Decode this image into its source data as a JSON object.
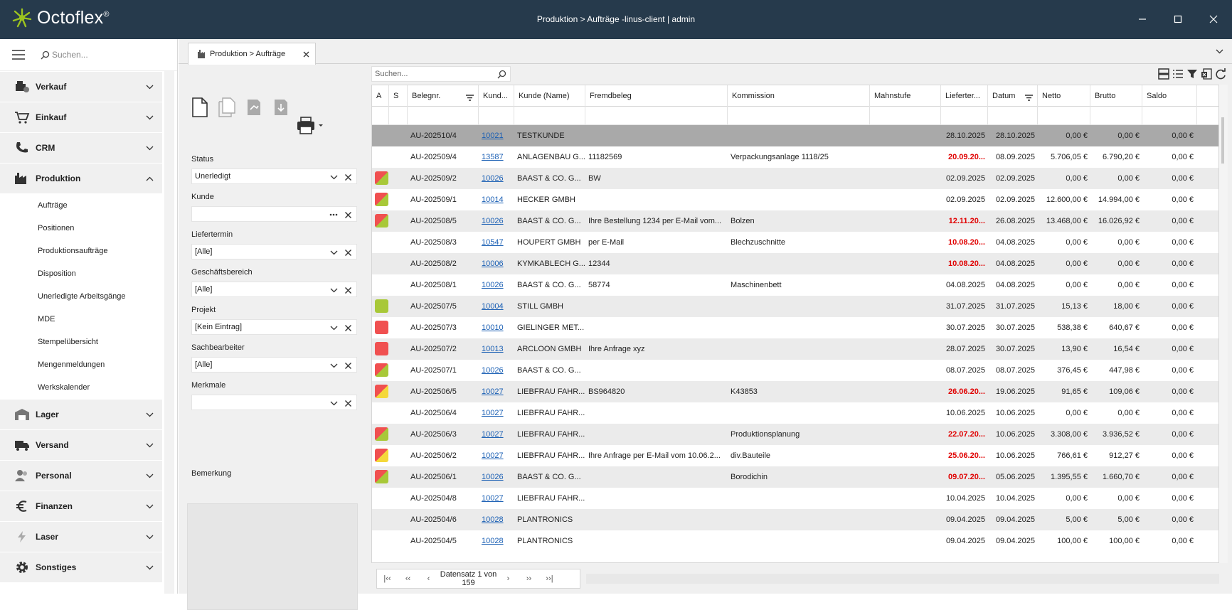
{
  "app": {
    "name": "Octoflex",
    "reg": "®",
    "window_title": "Produktion > Aufträge -linus-client | admin"
  },
  "sidebar": {
    "search_placeholder": "Suchen...",
    "groups_top": [
      {
        "label": "Verkauf",
        "icon": "register-icon"
      },
      {
        "label": "Einkauf",
        "icon": "cart-icon"
      },
      {
        "label": "CRM",
        "icon": "phone-icon"
      },
      {
        "label": "Produktion",
        "icon": "factory-icon",
        "expanded": true
      }
    ],
    "subitems": [
      "Aufträge",
      "Positionen",
      "Produktionsaufträge",
      "Disposition",
      "Unerledigte Arbeitsgänge",
      "MDE",
      "Stempelübersicht",
      "Mengenmeldungen",
      "Werkskalender"
    ],
    "groups_bottom": [
      {
        "label": "Lager",
        "icon": "warehouse-icon"
      },
      {
        "label": "Versand",
        "icon": "truck-icon"
      },
      {
        "label": "Personal",
        "icon": "people-icon"
      },
      {
        "label": "Finanzen",
        "icon": "euro-icon"
      },
      {
        "label": "Laser",
        "icon": "lightning-icon"
      },
      {
        "label": "Sonstiges",
        "icon": "gear-icon"
      }
    ]
  },
  "tab": {
    "label": "Produktion > Aufträge"
  },
  "filters": [
    {
      "label": "Status",
      "value": "Unerledigt",
      "type": "select"
    },
    {
      "label": "Kunde",
      "value": "",
      "type": "lookup"
    },
    {
      "label": "Liefertermin",
      "value": "[Alle]",
      "type": "select"
    },
    {
      "label": "Geschäftsbereich",
      "value": "[Alle]",
      "type": "select"
    },
    {
      "label": "Projekt",
      "value": "[Kein Eintrag]",
      "type": "select"
    },
    {
      "label": "Sachbearbeiter",
      "value": "[Alle]",
      "type": "select"
    },
    {
      "label": "Merkmale",
      "value": "",
      "type": "select"
    }
  ],
  "remark_label": "Bemerkung",
  "grid": {
    "search_placeholder": "Suchen...",
    "columns": [
      "A",
      "S",
      "Belegnr.",
      "Kund...",
      "Kunde (Name)",
      "Fremdbeleg",
      "Kommission",
      "Mahnstufe",
      "Lieferter...",
      "Datum",
      "Netto",
      "Brutto",
      "Saldo"
    ],
    "rows": [
      {
        "flag": "",
        "belegnr": "AU-202510/4",
        "kund": "10021",
        "name": "TESTKUNDE",
        "fremd": "",
        "komm": "",
        "mahn": "",
        "liefer": "28.10.2025",
        "liefer_red": false,
        "datum": "28.10.2025",
        "netto": "0,00 €",
        "brutto": "0,00 €",
        "saldo": "0,00 €",
        "selected": true
      },
      {
        "flag": "",
        "belegnr": "AU-202509/4",
        "kund": "13587",
        "name": "ANLAGENBAU G...",
        "fremd": "11182569",
        "komm": "Verpackungsanlage 1118/25",
        "mahn": "",
        "liefer": "20.09.20...",
        "liefer_red": true,
        "datum": "08.09.2025",
        "netto": "5.706,05 €",
        "brutto": "6.790,20 €",
        "saldo": "0,00 €"
      },
      {
        "flag": "rg",
        "belegnr": "AU-202509/2",
        "kund": "10026",
        "name": "BAAST & CO. G...",
        "fremd": "BW",
        "komm": "",
        "mahn": "",
        "liefer": "02.09.2025",
        "liefer_red": false,
        "datum": "02.09.2025",
        "netto": "0,00 €",
        "brutto": "0,00 €",
        "saldo": "0,00 €"
      },
      {
        "flag": "rg",
        "belegnr": "AU-202509/1",
        "kund": "10014",
        "name": "HECKER GMBH",
        "fremd": "",
        "komm": "",
        "mahn": "",
        "liefer": "02.09.2025",
        "liefer_red": false,
        "datum": "02.09.2025",
        "netto": "12.600,00 €",
        "brutto": "14.994,00 €",
        "saldo": "0,00 €"
      },
      {
        "flag": "rg",
        "belegnr": "AU-202508/5",
        "kund": "10026",
        "name": "BAAST & CO. G...",
        "fremd": "Ihre Bestellung 1234 per E-Mail vom...",
        "komm": "Bolzen",
        "mahn": "",
        "liefer": "12.11.20...",
        "liefer_red": true,
        "datum": "26.08.2025",
        "netto": "13.468,00 €",
        "brutto": "16.026,92 €",
        "saldo": "0,00 €"
      },
      {
        "flag": "",
        "belegnr": "AU-202508/3",
        "kund": "10547",
        "name": "HOUPERT GMBH",
        "fremd": "per E-Mail",
        "komm": "Blechzuschnitte",
        "mahn": "",
        "liefer": "10.08.20...",
        "liefer_red": true,
        "datum": "04.08.2025",
        "netto": "0,00 €",
        "brutto": "0,00 €",
        "saldo": "0,00 €"
      },
      {
        "flag": "",
        "belegnr": "AU-202508/2",
        "kund": "10006",
        "name": "KYMKABLECH G...",
        "fremd": "12344",
        "komm": "",
        "mahn": "",
        "liefer": "10.08.20...",
        "liefer_red": true,
        "datum": "04.08.2025",
        "netto": "0,00 €",
        "brutto": "0,00 €",
        "saldo": "0,00 €"
      },
      {
        "flag": "",
        "belegnr": "AU-202508/1",
        "kund": "10026",
        "name": "BAAST & CO. G...",
        "fremd": "58774",
        "komm": "Maschinenbett",
        "mahn": "",
        "liefer": "04.08.2025",
        "liefer_red": false,
        "datum": "04.08.2025",
        "netto": "0,00 €",
        "brutto": "0,00 €",
        "saldo": "0,00 €"
      },
      {
        "flag": "g",
        "belegnr": "AU-202507/5",
        "kund": "10004",
        "name": "STILL GMBH",
        "fremd": "",
        "komm": "",
        "mahn": "",
        "liefer": "31.07.2025",
        "liefer_red": false,
        "datum": "31.07.2025",
        "netto": "15,13 €",
        "brutto": "18,00 €",
        "saldo": "0,00 €"
      },
      {
        "flag": "r",
        "belegnr": "AU-202507/3",
        "kund": "10010",
        "name": "GIELINGER MET...",
        "fremd": "",
        "komm": "",
        "mahn": "",
        "liefer": "30.07.2025",
        "liefer_red": false,
        "datum": "30.07.2025",
        "netto": "538,38 €",
        "brutto": "640,67 €",
        "saldo": "0,00 €"
      },
      {
        "flag": "r",
        "belegnr": "AU-202507/2",
        "kund": "10013",
        "name": "ARCLOON GMBH",
        "fremd": "Ihre Anfrage xyz",
        "komm": "",
        "mahn": "",
        "liefer": "28.07.2025",
        "liefer_red": false,
        "datum": "30.07.2025",
        "netto": "13,90 €",
        "brutto": "16,54 €",
        "saldo": "0,00 €"
      },
      {
        "flag": "rg",
        "belegnr": "AU-202507/1",
        "kund": "10026",
        "name": "BAAST & CO. G...",
        "fremd": "",
        "komm": "",
        "mahn": "",
        "liefer": "08.07.2025",
        "liefer_red": false,
        "datum": "08.07.2025",
        "netto": "376,45 €",
        "brutto": "447,98 €",
        "saldo": "0,00 €"
      },
      {
        "flag": "ry",
        "belegnr": "AU-202506/5",
        "kund": "10027",
        "name": "LIEBFRAU FAHR...",
        "fremd": "BS964820",
        "komm": "K43853",
        "mahn": "",
        "liefer": "26.06.20...",
        "liefer_red": true,
        "datum": "19.06.2025",
        "netto": "91,65 €",
        "brutto": "109,06 €",
        "saldo": "0,00 €"
      },
      {
        "flag": "",
        "belegnr": "AU-202506/4",
        "kund": "10027",
        "name": "LIEBFRAU FAHR...",
        "fremd": "",
        "komm": "",
        "mahn": "",
        "liefer": "10.06.2025",
        "liefer_red": false,
        "datum": "10.06.2025",
        "netto": "0,00 €",
        "brutto": "0,00 €",
        "saldo": "0,00 €"
      },
      {
        "flag": "rg",
        "belegnr": "AU-202506/3",
        "kund": "10027",
        "name": "LIEBFRAU FAHR...",
        "fremd": "",
        "komm": "Produktionsplanung",
        "mahn": "",
        "liefer": "22.07.20...",
        "liefer_red": true,
        "datum": "10.06.2025",
        "netto": "3.308,00 €",
        "brutto": "3.936,52 €",
        "saldo": "0,00 €"
      },
      {
        "flag": "ry",
        "belegnr": "AU-202506/2",
        "kund": "10027",
        "name": "LIEBFRAU FAHR...",
        "fremd": "Ihre Anfrage per E-Mail vom 10.06.2...",
        "komm": "div.Bauteile",
        "mahn": "",
        "liefer": "25.06.20...",
        "liefer_red": true,
        "datum": "10.06.2025",
        "netto": "766,61 €",
        "brutto": "912,27 €",
        "saldo": "0,00 €"
      },
      {
        "flag": "rg",
        "belegnr": "AU-202506/1",
        "kund": "10026",
        "name": "BAAST & CO. G...",
        "fremd": "",
        "komm": "Borodichin",
        "mahn": "",
        "liefer": "09.07.20...",
        "liefer_red": true,
        "datum": "05.06.2025",
        "netto": "1.395,55 €",
        "brutto": "1.660,70 €",
        "saldo": "0,00 €"
      },
      {
        "flag": "",
        "belegnr": "AU-202504/8",
        "kund": "10027",
        "name": "LIEBFRAU FAHR...",
        "fremd": "",
        "komm": "",
        "mahn": "",
        "liefer": "10.04.2025",
        "liefer_red": false,
        "datum": "10.04.2025",
        "netto": "0,00 €",
        "brutto": "0,00 €",
        "saldo": "0,00 €"
      },
      {
        "flag": "",
        "belegnr": "AU-202504/6",
        "kund": "10028",
        "name": "PLANTRONICS",
        "fremd": "",
        "komm": "",
        "mahn": "",
        "liefer": "09.04.2025",
        "liefer_red": false,
        "datum": "09.04.2025",
        "netto": "5,00 €",
        "brutto": "5,00 €",
        "saldo": "0,00 €"
      },
      {
        "flag": "",
        "belegnr": "AU-202504/5",
        "kund": "10028",
        "name": "PLANTRONICS",
        "fremd": "",
        "komm": "",
        "mahn": "",
        "liefer": "09.04.2025",
        "liefer_red": false,
        "datum": "09.04.2025",
        "netto": "100,00 €",
        "brutto": "100,00 €",
        "saldo": "0,00 €"
      }
    ]
  },
  "pager": {
    "label": "Datensatz 1 von 159"
  },
  "colors": {
    "titlebar": "#263a4c",
    "logo_green": "#9cc31f",
    "flag_red": "#f05050",
    "flag_green": "#a8c838",
    "flag_yellow": "#f4d83a",
    "selected_row": "#a9a9a9",
    "date_red": "#e00000"
  }
}
